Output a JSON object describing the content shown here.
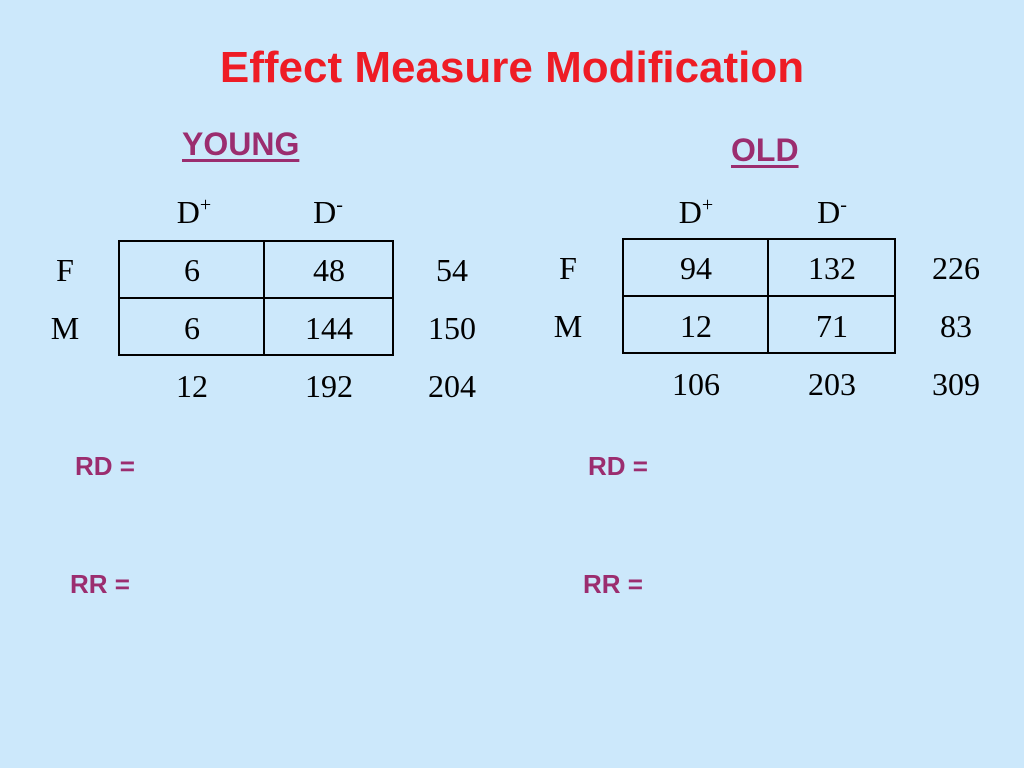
{
  "title": "Effect Measure Modification",
  "young": {
    "label": "YOUNG",
    "col_headers": {
      "d_plus_base": "D",
      "d_plus_sup": "+",
      "d_minus_base": "D",
      "d_minus_sup": "-"
    },
    "row_labels": [
      "F",
      "M"
    ],
    "rows": [
      {
        "d_plus": "6",
        "d_minus": "48",
        "total": "54"
      },
      {
        "d_plus": "6",
        "d_minus": "144",
        "total": "150"
      }
    ],
    "totals": {
      "d_plus": "12",
      "d_minus": "192",
      "grand": "204"
    },
    "rd_label": "RD =",
    "rr_label": "RR ="
  },
  "old": {
    "label": "OLD",
    "col_headers": {
      "d_plus_base": "D",
      "d_plus_sup": "+",
      "d_minus_base": "D",
      "d_minus_sup": "-"
    },
    "row_labels": [
      "F",
      "M"
    ],
    "rows": [
      {
        "d_plus": "94",
        "d_minus": "132",
        "total": "226"
      },
      {
        "d_plus": "12",
        "d_minus": "71",
        "total": "83"
      }
    ],
    "totals": {
      "d_plus": "106",
      "d_minus": "203",
      "grand": "309"
    },
    "rd_label": "RD =",
    "rr_label": "RR ="
  },
  "colors": {
    "background": "#cce8fb",
    "title": "#ee1c25",
    "labels": "#9b2d6f"
  }
}
